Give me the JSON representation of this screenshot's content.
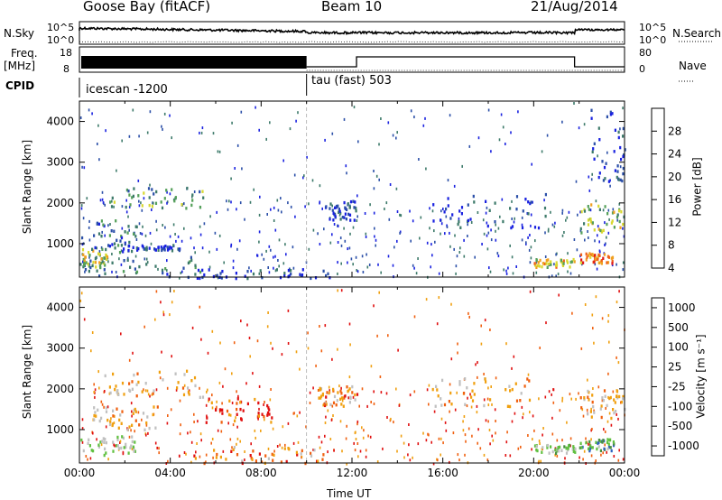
{
  "header": {
    "station": "Goose Bay (fitACF)",
    "beam": "Beam 10",
    "date": "21/Aug/2014"
  },
  "side_labels": {
    "nsky": "N.Sky",
    "freq": "Freq.",
    "mhz": "[MHz]",
    "cpid": "CPID",
    "nsearch": "N.Search",
    "nave": "Nave"
  },
  "panel_ticks": {
    "nsky_left": [
      "10^5",
      "10^0"
    ],
    "nsky_right": [
      "10^5",
      "10^0"
    ],
    "freq_left": [
      "18",
      "8"
    ],
    "nave_right": [
      "80",
      "0"
    ]
  },
  "cpid_labels": [
    "icescan -1200",
    "tau (fast) 503"
  ],
  "colors": {
    "power_scale": [
      "#1a22e0",
      "#2b4fa8",
      "#3d7a6a",
      "#55a05a",
      "#d8d830",
      "#f0a020",
      "#f06018",
      "#e01818"
    ],
    "velocity_scale": [
      "#e01010",
      "#f06010",
      "#f0a010",
      "#c0c0c0",
      "#c0c0c0",
      "#60c040",
      "#4a9040",
      "#3060c0"
    ],
    "dots": "#3050a0"
  },
  "chart_data": [
    {
      "type": "heatmap",
      "title": "",
      "xlabel": "Time UT",
      "ylabel": "Slant Range [km]",
      "xlim_hours": [
        0,
        24
      ],
      "ylim_km": [
        180,
        4500
      ],
      "x_ticks": [
        "00:00",
        "04:00",
        "08:00",
        "12:00",
        "16:00",
        "20:00",
        "00:00"
      ],
      "y_ticks": [
        1000,
        2000,
        3000,
        4000
      ],
      "colorbar": {
        "label": "Power [dB]",
        "ticks": [
          4,
          8,
          12,
          16,
          20,
          24,
          28
        ],
        "range": [
          0,
          30
        ]
      },
      "regions": [
        {
          "t": [
            0.0,
            5.5
          ],
          "r": [
            180,
            700
          ],
          "level": 2
        },
        {
          "t": [
            0.0,
            1.2
          ],
          "r": [
            450,
            900
          ],
          "level": 4
        },
        {
          "t": [
            0.5,
            2.5
          ],
          "r": [
            800,
            1600
          ],
          "level": 2
        },
        {
          "t": [
            1.2,
            5.5
          ],
          "r": [
            1900,
            2400
          ],
          "level": 3
        },
        {
          "t": [
            2.0,
            4.5
          ],
          "r": [
            850,
            1000
          ],
          "level": 1
        },
        {
          "t": [
            5.0,
            11.0
          ],
          "r": [
            180,
            400
          ],
          "level": 1
        },
        {
          "t": [
            10.8,
            12.2
          ],
          "r": [
            1600,
            2100
          ],
          "level": 1
        },
        {
          "t": [
            15.5,
            20.5
          ],
          "r": [
            1400,
            2300
          ],
          "level": 1
        },
        {
          "t": [
            20.0,
            21.8
          ],
          "r": [
            450,
            650
          ],
          "level": 5
        },
        {
          "t": [
            22.0,
            24.0
          ],
          "r": [
            1300,
            2000
          ],
          "level": 4
        },
        {
          "t": [
            22.0,
            23.5
          ],
          "r": [
            550,
            800
          ],
          "level": 6
        },
        {
          "t": [
            22.5,
            24.0
          ],
          "r": [
            2500,
            4400
          ],
          "level": 1
        }
      ]
    },
    {
      "type": "heatmap",
      "title": "",
      "xlabel": "Time UT",
      "ylabel": "Slant Range [km]",
      "xlim_hours": [
        0,
        24
      ],
      "ylim_km": [
        180,
        4500
      ],
      "x_ticks": [
        "00:00",
        "04:00",
        "08:00",
        "12:00",
        "16:00",
        "20:00",
        "00:00"
      ],
      "y_ticks": [
        1000,
        2000,
        3000,
        4000
      ],
      "colorbar": {
        "label": "Velocity [m s⁻¹]",
        "ticks": [
          "1000",
          "500",
          "100",
          "25",
          "-25",
          "-100",
          "-500",
          "-1000"
        ]
      },
      "regions": [
        {
          "t": [
            1.0,
            5.5
          ],
          "r": [
            1800,
            2500
          ],
          "level": 3
        },
        {
          "t": [
            0.5,
            3.5
          ],
          "r": [
            1000,
            1600
          ],
          "level": 3
        },
        {
          "t": [
            5.5,
            8.5
          ],
          "r": [
            1200,
            1800
          ],
          "level": 1
        },
        {
          "t": [
            5.0,
            11.0
          ],
          "r": [
            180,
            600
          ],
          "level": 2
        },
        {
          "t": [
            0.0,
            2.5
          ],
          "r": [
            400,
            900
          ],
          "level": 5
        },
        {
          "t": [
            20.0,
            21.8
          ],
          "r": [
            450,
            650
          ],
          "level": 5
        },
        {
          "t": [
            22.0,
            24.0
          ],
          "r": [
            1300,
            2000
          ],
          "level": 3
        },
        {
          "t": [
            22.0,
            23.5
          ],
          "r": [
            500,
            800
          ],
          "level": 6
        },
        {
          "t": [
            15.5,
            20.0
          ],
          "r": [
            1600,
            2300
          ],
          "level": 3
        },
        {
          "t": [
            10.5,
            12.2
          ],
          "r": [
            1600,
            2100
          ],
          "level": 2
        }
      ]
    }
  ]
}
